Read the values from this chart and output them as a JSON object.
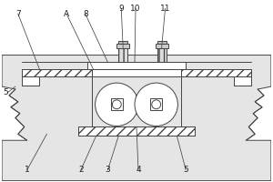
{
  "bg_color": "#ffffff",
  "line_color": "#444444",
  "figsize": [
    3.0,
    2.0
  ],
  "dpi": 100,
  "labels_top": [
    [
      "7",
      18,
      14
    ],
    [
      "A",
      72,
      14
    ],
    [
      "8",
      93,
      14
    ],
    [
      "9",
      133,
      8
    ],
    [
      "10",
      149,
      8
    ],
    [
      "11",
      182,
      8
    ]
  ],
  "labels_bottom": [
    [
      "1",
      28,
      188
    ],
    [
      "2",
      88,
      188
    ],
    [
      "3",
      118,
      188
    ],
    [
      "4",
      152,
      188
    ],
    [
      "5",
      205,
      188
    ]
  ],
  "label_left": [
    "5",
    4,
    102
  ]
}
